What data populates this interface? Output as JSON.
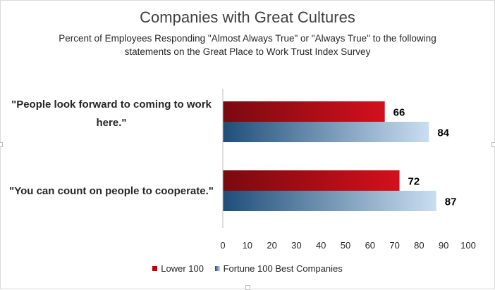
{
  "chart_data": {
    "type": "bar",
    "orientation": "horizontal",
    "title": "Companies with Great Cultures",
    "subtitle": "Percent of Employees Responding \"Almost Always True\" or \"Always True\" to the following statements on the Great Place to Work Trust Index Survey",
    "categories": [
      "\"People look forward to coming to work here.\"",
      "\"You can count on people to cooperate.\""
    ],
    "series": [
      {
        "name": "Lower 100",
        "values": [
          66,
          72
        ],
        "color": "#c00000"
      },
      {
        "name": "Fortune 100 Best Companies",
        "values": [
          84,
          87
        ],
        "color": "#1f4e79"
      }
    ],
    "xlim": [
      0,
      100
    ],
    "xticks": [
      0,
      10,
      20,
      30,
      40,
      50,
      60,
      70,
      80,
      90,
      100
    ],
    "grid": false,
    "legend": "bottom"
  }
}
